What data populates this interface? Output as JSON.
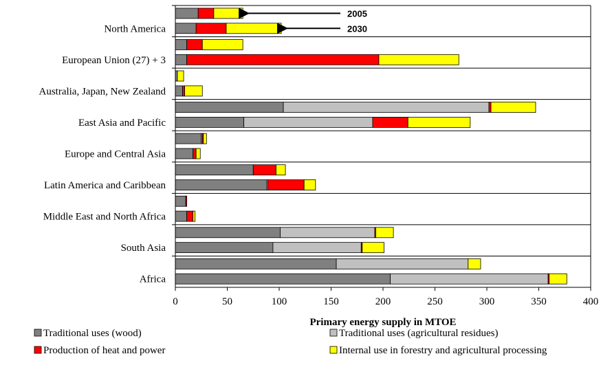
{
  "chart_data": {
    "type": "bar",
    "orientation": "horizontal",
    "stacked": true,
    "xlabel": "Primary energy supply in MTOE",
    "xlim": [
      0,
      400
    ],
    "xticks": [
      "0",
      "50",
      "100",
      "150",
      "200",
      "250",
      "300",
      "350",
      "400"
    ],
    "grid": "horizontal lines between regions",
    "legend_position": "bottom",
    "categories": [
      "North America",
      "European Union (27) + 3",
      "Australia, Japan, New Zealand",
      "East Asia and Pacific",
      "Europe and Central Asia",
      "Latin America and Caribbean",
      "Middle East and North Africa",
      "South Asia",
      "Africa"
    ],
    "years": [
      "2005",
      "2030"
    ],
    "series": [
      {
        "name": "Traditional uses (wood)",
        "color": "#808080",
        "values_2005": [
          22,
          11,
          2,
          104,
          25,
          75,
          10,
          101,
          155
        ],
        "values_2030": [
          20,
          11,
          7,
          66,
          17,
          88,
          11,
          94,
          207
        ]
      },
      {
        "name": "Traditional uses (agricultural residues)",
        "color": "#c0c0c0",
        "values_2005": [
          0,
          0,
          0,
          198,
          1,
          0,
          0,
          91,
          127
        ],
        "values_2030": [
          0,
          0,
          0,
          124,
          0,
          1,
          0,
          85,
          152
        ]
      },
      {
        "name": "Production of heat and power",
        "color": "#ff0000",
        "values_2005": [
          15,
          15,
          0,
          2,
          1,
          22,
          1,
          1,
          0
        ],
        "values_2030": [
          29,
          185,
          2,
          34,
          3,
          35,
          6,
          1,
          1
        ]
      },
      {
        "name": "Internal use in forestry and agricultural processing",
        "color": "#ffff00",
        "values_2005": [
          28,
          39,
          6,
          43,
          3,
          9,
          0,
          17,
          12
        ],
        "values_2030": [
          53,
          77,
          17,
          60,
          4,
          11,
          2,
          21,
          17
        ]
      }
    ],
    "annotations": [
      {
        "text": "2005"
      },
      {
        "text": "2030"
      }
    ]
  }
}
